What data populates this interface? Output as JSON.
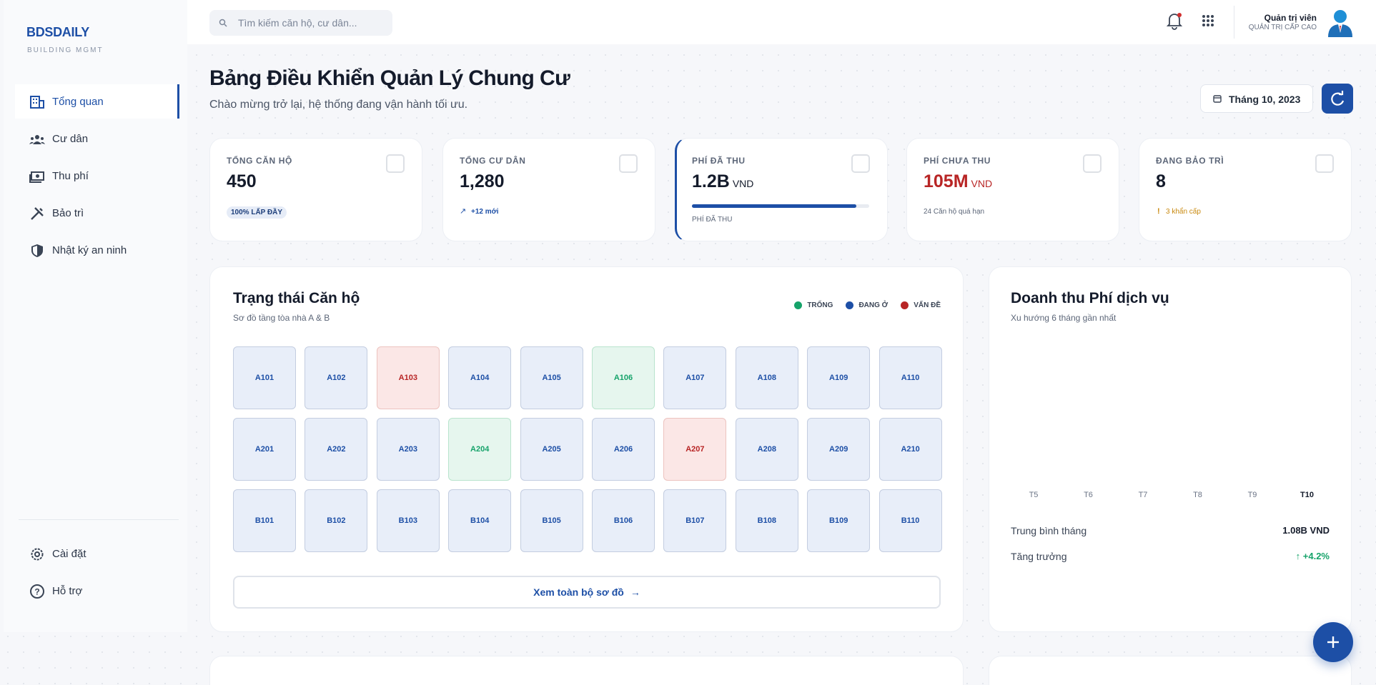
{
  "sidebar": {
    "brand": "BDSDAILY",
    "brand_sub": "BUILDING MGMT",
    "nav": [
      "Tổng quan",
      "Cư dân",
      "Thu phí",
      "Bảo trì",
      "Nhật ký an ninh"
    ],
    "bottom_nav": [
      "Cài đặt",
      "Hỗ trợ"
    ]
  },
  "topbar": {
    "search_placeholder": "Tìm kiếm căn hộ, cư dân...",
    "user_name": "Quản trị viên",
    "user_role": "QUẢN TRỊ CẤP CAO"
  },
  "header": {
    "title": "Bảng Điều Khiển Quản Lý Chung Cư",
    "subtitle": "Chào mừng trở lại, hệ thống đang vận hành tối ưu.",
    "date": "Tháng 10, 2023"
  },
  "stats": [
    {
      "label": "TỔNG CĂN HỘ",
      "value": "450",
      "note": "100% LẤP ĐẦY"
    },
    {
      "label": "TỔNG CƯ DÂN",
      "value": "1,280",
      "note": "+12 mới"
    },
    {
      "label": "PHÍ ĐÃ THU",
      "value": "1.2B",
      "unit": "VND",
      "note": "PHÍ ĐÃ THU"
    },
    {
      "label": "PHÍ CHƯA THU",
      "value": "105M",
      "unit": "VND",
      "note": "24 Căn hộ quá hạn"
    },
    {
      "label": "ĐANG BẢO TRÌ",
      "value": "8",
      "note": "3 khẩn cấp"
    }
  ],
  "apartments": {
    "title": "Trạng thái Căn hộ",
    "subtitle": "Sơ đồ tầng tòa nhà A & B",
    "legend": [
      {
        "label": "TRỐNG",
        "color": "#16a36a"
      },
      {
        "label": "ĐANG Ở",
        "color": "#1d4fa6"
      },
      {
        "label": "VẤN ĐỀ",
        "color": "#b82525"
      }
    ],
    "units": [
      {
        "code": "A101",
        "state": "ĐANG Ở"
      },
      {
        "code": "A102",
        "state": "ĐANG Ở"
      },
      {
        "code": "A103",
        "state": "VẤN ĐỀ"
      },
      {
        "code": "A104",
        "state": "ĐANG Ở"
      },
      {
        "code": "A105",
        "state": "ĐANG Ở"
      },
      {
        "code": "A106",
        "state": "TRỐNG"
      },
      {
        "code": "A107",
        "state": "ĐANG Ở"
      },
      {
        "code": "A108",
        "state": "ĐANG Ở"
      },
      {
        "code": "A109",
        "state": "ĐANG Ở"
      },
      {
        "code": "A110",
        "state": "ĐANG Ở"
      },
      {
        "code": "A201",
        "state": "ĐANG Ở"
      },
      {
        "code": "A202",
        "state": "ĐANG Ở"
      },
      {
        "code": "A203",
        "state": "ĐANG Ở"
      },
      {
        "code": "A204",
        "state": "TRỐNG"
      },
      {
        "code": "A205",
        "state": "ĐANG Ở"
      },
      {
        "code": "A206",
        "state": "ĐANG Ở"
      },
      {
        "code": "A207",
        "state": "VẤN ĐỀ"
      },
      {
        "code": "A208",
        "state": "ĐANG Ở"
      },
      {
        "code": "A209",
        "state": "ĐANG Ở"
      },
      {
        "code": "A210",
        "state": "ĐANG Ở"
      },
      {
        "code": "B101",
        "state": "ĐANG Ở"
      },
      {
        "code": "B102",
        "state": "ĐANG Ở"
      },
      {
        "code": "B103",
        "state": "ĐANG Ở"
      },
      {
        "code": "B104",
        "state": "ĐANG Ở"
      },
      {
        "code": "B105",
        "state": "ĐANG Ở"
      },
      {
        "code": "B106",
        "state": "ĐANG Ở"
      },
      {
        "code": "B107",
        "state": "ĐANG Ở"
      },
      {
        "code": "B108",
        "state": "ĐANG Ở"
      },
      {
        "code": "B109",
        "state": "ĐANG Ở"
      },
      {
        "code": "B110",
        "state": "ĐANG Ở"
      }
    ],
    "view_all": "Xem toàn bộ sơ đồ"
  },
  "revenue": {
    "title": "Doanh thu Phí dịch vụ",
    "subtitle": "Xu hướng 6 tháng gần nhất",
    "months": [
      "T5",
      "T6",
      "T7",
      "T8",
      "T9",
      "T10"
    ],
    "avg_label": "Trung bình tháng",
    "avg_value": "1.08B VND",
    "growth_label": "Tăng trưởng",
    "growth_value": "+4.2%"
  }
}
